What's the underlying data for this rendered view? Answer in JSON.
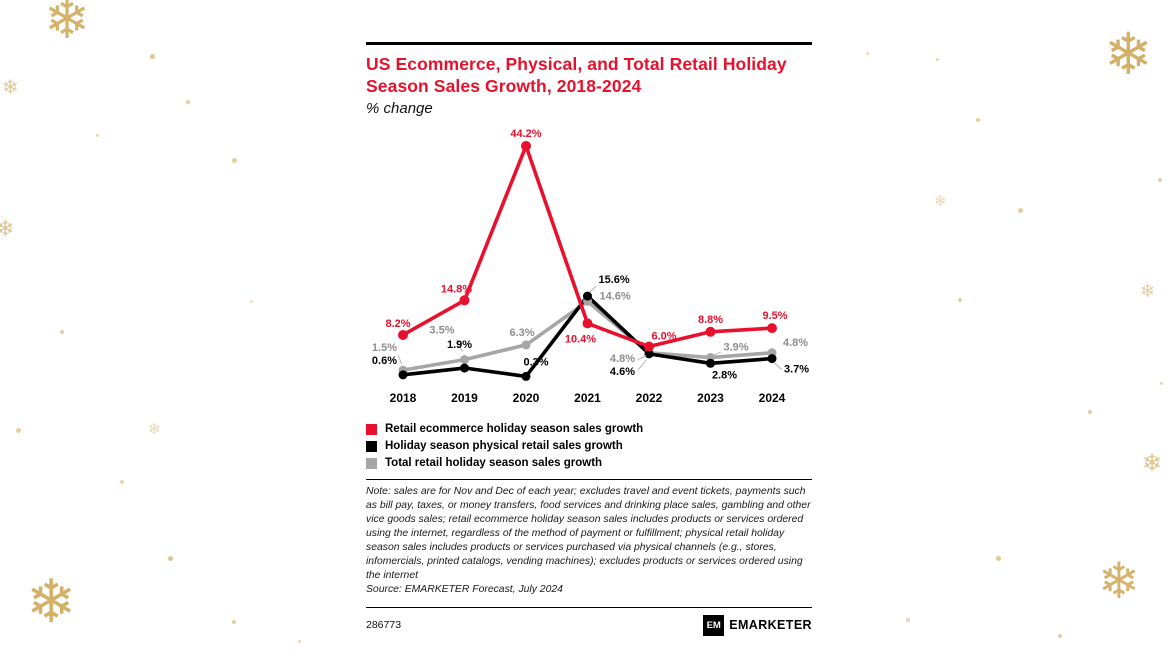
{
  "decor": {
    "snowflake_glyph": "❄",
    "accent_color": "#d2ab5e"
  },
  "card": {
    "title": "US Ecommerce, Physical, and Total Retail Holiday Season Sales Growth, 2018-2024",
    "subtitle": "% change",
    "title_color": "#e8112d",
    "note": "Note: sales are for Nov and Dec of each year; excludes travel and event tickets, payments such as bill pay, taxes, or money transfers, food services and drinking place sales, gambling and other vice goods sales; retail ecommerce holiday season sales includes products or services ordered using the internet, regardless of the method of payment or fulfillment; physical retail holiday season sales includes products or services purchased via physical channels (e.g., stores, infomercials, printed catalogs, vending machines); excludes products or services ordered using the internet",
    "source": "Source: EMARKETER Forecast, July 2024",
    "chart_id": "286773",
    "logo_monogram": "EM",
    "logo_text": "EMARKETER"
  },
  "chart_data": {
    "type": "line",
    "title": "US Ecommerce, Physical, and Total Retail Holiday Season Sales Growth, 2018-2024",
    "ylabel": "% change",
    "categories": [
      "2018",
      "2019",
      "2020",
      "2021",
      "2022",
      "2023",
      "2024"
    ],
    "series": [
      {
        "name": "Retail ecommerce holiday season sales growth",
        "color": "#e8112d",
        "values": [
          8.2,
          14.8,
          44.2,
          10.4,
          6.0,
          8.8,
          9.5
        ]
      },
      {
        "name": "Holiday season physical retail sales growth",
        "color": "#000000",
        "values": [
          0.6,
          1.9,
          0.3,
          15.6,
          4.6,
          2.8,
          3.7
        ]
      },
      {
        "name": "Total retail holiday season sales growth",
        "color": "#a7a5a5",
        "values": [
          1.5,
          3.5,
          6.3,
          14.6,
          4.8,
          3.9,
          4.8
        ]
      }
    ],
    "ylim": [
      0,
      46
    ],
    "grid": false,
    "axes_drawn": false,
    "data_labels": true,
    "label_format": "{value}%",
    "legend_position": "bottom-left"
  }
}
